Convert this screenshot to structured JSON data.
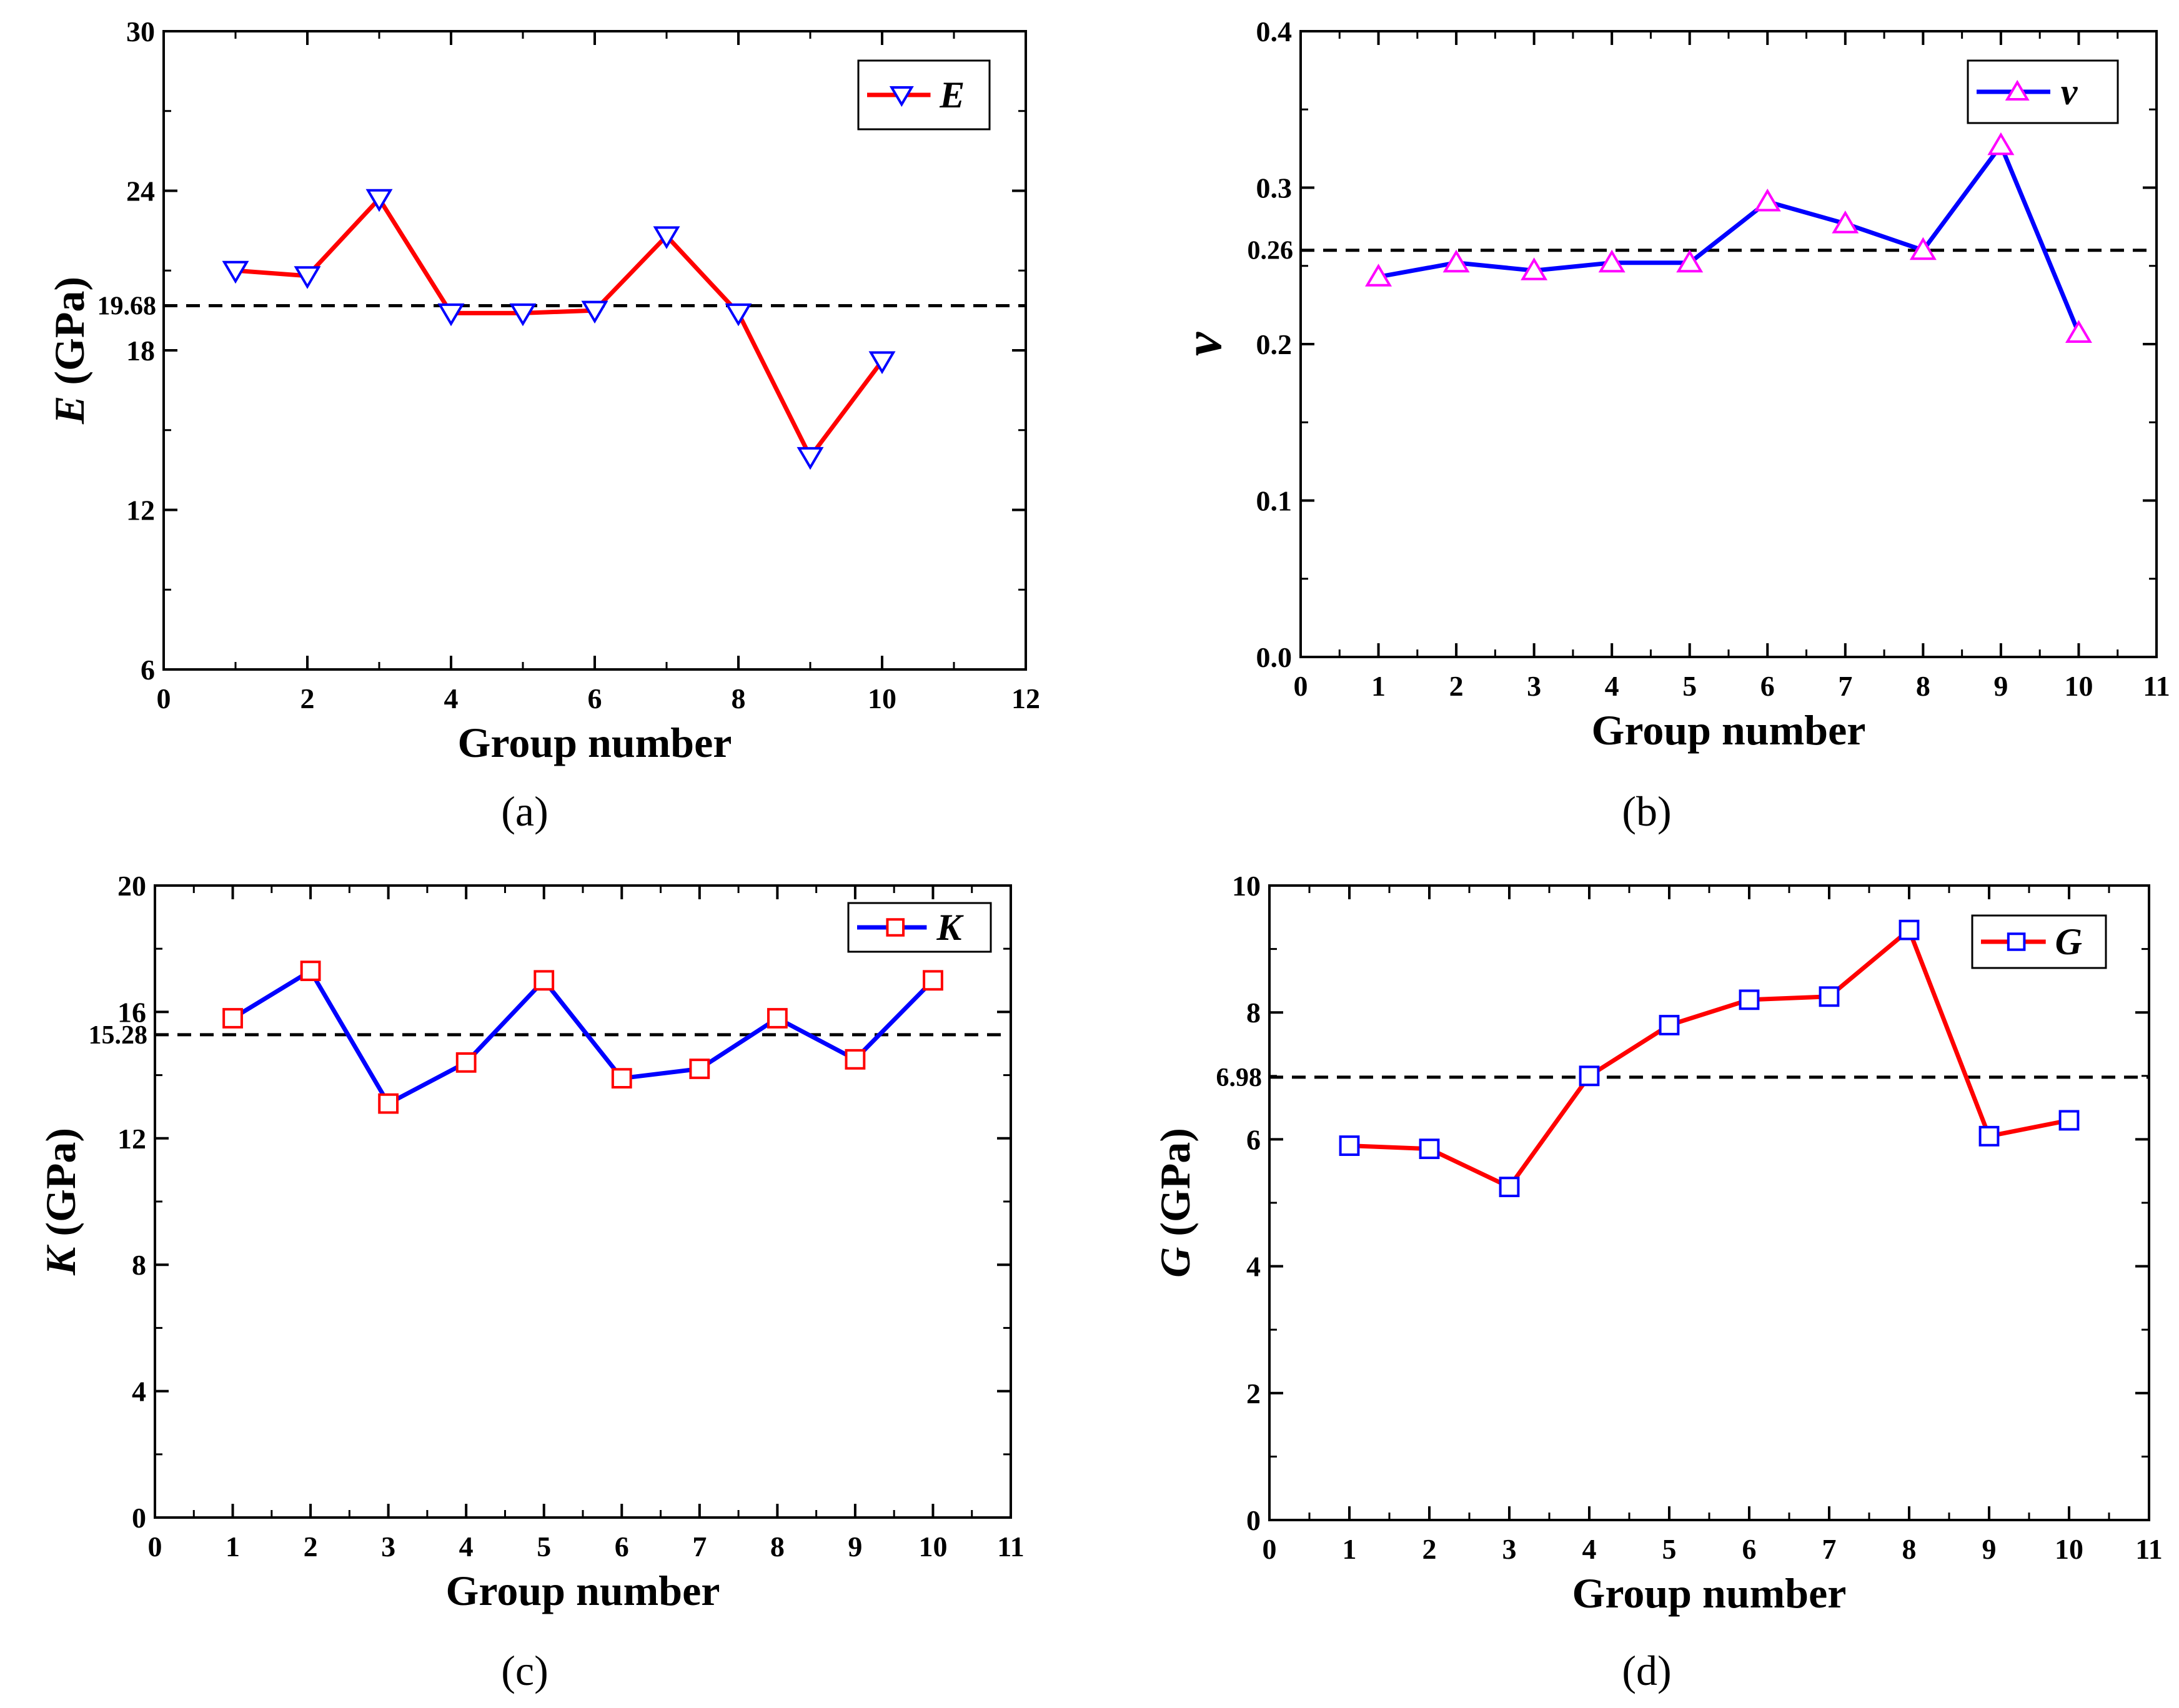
{
  "chart_data": [
    {
      "type": "line",
      "panel": "a",
      "caption": "(a)",
      "xlabel": "Group number",
      "ylabel_var": "E",
      "ylabel_unit": " (GPa)",
      "legend_label": "E",
      "legend_position": "top-right",
      "xlim": [
        0,
        12
      ],
      "ylim": [
        6,
        30
      ],
      "xticks": [
        0,
        2,
        4,
        6,
        8,
        10,
        12
      ],
      "xtick_labels": [
        "0",
        "2",
        "4",
        "6",
        "8",
        "10",
        "12"
      ],
      "yticks": [
        6,
        12,
        18,
        24,
        30
      ],
      "ytick_labels": [
        "6",
        "12",
        "18",
        "24",
        "30"
      ],
      "reference_value": 19.68,
      "reference_label": "19.68",
      "line_color": "#ff0000",
      "marker_color": "#0000ff",
      "marker": "triangle-down",
      "x": [
        1,
        2,
        3,
        4,
        5,
        6,
        7,
        8,
        9,
        10
      ],
      "values": [
        21.0,
        20.8,
        23.7,
        19.4,
        19.4,
        19.5,
        22.3,
        19.4,
        14.0,
        17.6
      ]
    },
    {
      "type": "line",
      "panel": "b",
      "caption": "(b)",
      "xlabel": "Group number",
      "ylabel_var": "v",
      "ylabel_unit": "",
      "legend_label": "v",
      "legend_position": "top-right",
      "xlim": [
        0,
        11
      ],
      "ylim": [
        0.0,
        0.4
      ],
      "xticks": [
        0,
        1,
        2,
        3,
        4,
        5,
        6,
        7,
        8,
        9,
        10,
        11
      ],
      "xtick_labels": [
        "0",
        "1",
        "2",
        "3",
        "4",
        "5",
        "6",
        "7",
        "8",
        "9",
        "10",
        "11"
      ],
      "yticks": [
        0.0,
        0.1,
        0.2,
        0.3,
        0.4
      ],
      "ytick_labels": [
        "0.0",
        "0.1",
        "0.2",
        "0.3",
        "0.4"
      ],
      "reference_value": 0.26,
      "reference_label": "0.26",
      "line_color": "#0000ff",
      "marker_color": "#ff00ff",
      "marker": "triangle-up",
      "x": [
        1,
        2,
        3,
        4,
        5,
        6,
        7,
        8,
        9,
        10
      ],
      "values": [
        0.243,
        0.252,
        0.247,
        0.252,
        0.252,
        0.291,
        0.277,
        0.26,
        0.327,
        0.207
      ]
    },
    {
      "type": "line",
      "panel": "c",
      "caption": "(c)",
      "xlabel": "Group number",
      "ylabel_var": "K",
      "ylabel_unit": " (GPa)",
      "legend_label": "K",
      "legend_position": "top-right",
      "xlim": [
        0,
        11
      ],
      "ylim": [
        0,
        20
      ],
      "xticks": [
        0,
        1,
        2,
        3,
        4,
        5,
        6,
        7,
        8,
        9,
        10,
        11
      ],
      "xtick_labels": [
        "0",
        "1",
        "2",
        "3",
        "4",
        "5",
        "6",
        "7",
        "8",
        "9",
        "10",
        "11"
      ],
      "yticks": [
        0,
        4,
        8,
        12,
        16,
        20
      ],
      "ytick_labels": [
        "0",
        "4",
        "8",
        "12",
        "16",
        "20"
      ],
      "reference_value": 15.28,
      "reference_label": "15.28",
      "line_color": "#0000ff",
      "marker_color": "#ff0000",
      "marker": "square",
      "x": [
        1,
        2,
        3,
        4,
        5,
        6,
        7,
        8,
        9,
        10
      ],
      "values": [
        15.8,
        17.3,
        13.1,
        14.4,
        17.0,
        13.9,
        14.2,
        15.8,
        14.5,
        17.0
      ]
    },
    {
      "type": "line",
      "panel": "d",
      "caption": "(d)",
      "xlabel": "Group number",
      "ylabel_var": "G",
      "ylabel_unit": " (GPa)",
      "legend_label": "G",
      "legend_position": "top-right",
      "xlim": [
        0,
        11
      ],
      "ylim": [
        0,
        10
      ],
      "xticks": [
        0,
        1,
        2,
        3,
        4,
        5,
        6,
        7,
        8,
        9,
        10,
        11
      ],
      "xtick_labels": [
        "0",
        "1",
        "2",
        "3",
        "4",
        "5",
        "6",
        "7",
        "8",
        "9",
        "10",
        "11"
      ],
      "yticks": [
        0,
        2,
        4,
        6,
        8,
        10
      ],
      "ytick_labels": [
        "0",
        "2",
        "4",
        "6",
        "8",
        "10"
      ],
      "reference_value": 6.98,
      "reference_label": "6.98",
      "line_color": "#ff0000",
      "marker_color": "#0000ff",
      "marker": "square",
      "x": [
        1,
        2,
        3,
        4,
        5,
        6,
        7,
        8,
        9,
        10
      ],
      "values": [
        5.9,
        5.85,
        5.25,
        7.0,
        7.8,
        8.2,
        8.25,
        9.3,
        6.05,
        6.3
      ]
    }
  ]
}
